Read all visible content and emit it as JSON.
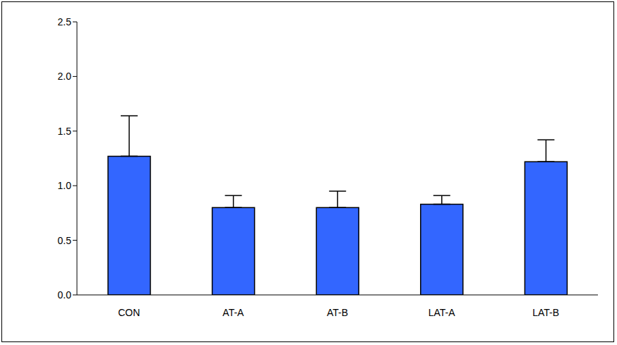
{
  "chart_data": {
    "type": "bar",
    "categories": [
      "CON",
      "AT-A",
      "AT-B",
      "LAT-A",
      "LAT-B"
    ],
    "values": [
      1.27,
      0.8,
      0.8,
      0.83,
      1.22
    ],
    "errors": [
      0.37,
      0.11,
      0.15,
      0.08,
      0.2
    ],
    "color": "#3366ff",
    "ylim": [
      0,
      2.5
    ],
    "yticks": [
      {
        "value": 0,
        "label": "0.0"
      },
      0.5,
      {
        "value": 1,
        "label": "1.0"
      },
      1.5,
      {
        "value": 2,
        "label": "2.0"
      },
      2.5
    ],
    "grid": false
  }
}
